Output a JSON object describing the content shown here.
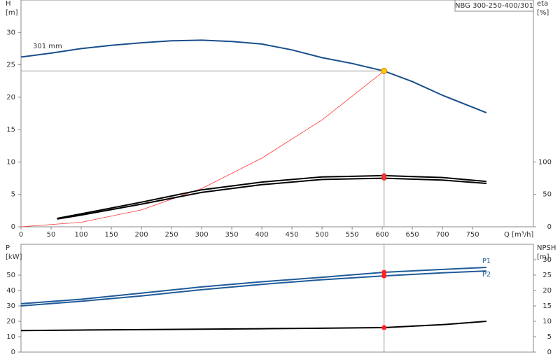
{
  "chart_data": [
    {
      "type": "line",
      "title": "NBG 300-250-400/301",
      "xlabel": "Q [m³/h]",
      "ylabel": [
        "H",
        "[m]"
      ],
      "y2label": [
        "eta",
        "[%]"
      ],
      "annotations": [
        "301 mm"
      ],
      "xlim": [
        0,
        851
      ],
      "xticks": [
        0,
        50,
        100,
        150,
        200,
        250,
        300,
        350,
        400,
        450,
        500,
        550,
        600,
        650,
        700,
        750
      ],
      "ylim": [
        0,
        35
      ],
      "yticks": [
        0,
        5,
        10,
        15,
        20,
        25,
        30
      ],
      "y2lim": [
        0,
        350
      ],
      "y2ticks": [
        0,
        50,
        100
      ],
      "series": [
        {
          "color": "#1a4f8c",
          "x": [
            0,
            50,
            100,
            150,
            200,
            250,
            300,
            350,
            400,
            450,
            500,
            550,
            603,
            650,
            700,
            773
          ],
          "values": [
            26.2,
            26.8,
            27.5,
            28.0,
            28.4,
            28.7,
            28.8,
            28.6,
            28.2,
            27.3,
            26.1,
            25.2,
            24.05,
            22.4,
            20.3,
            17.6
          ]
        },
        {
          "color": "#ff3333",
          "x": [
            0,
            100,
            200,
            300,
            400,
            500,
            603
          ],
          "values": [
            0,
            0.7,
            2.6,
            5.9,
            10.6,
            16.5,
            24.05
          ]
        },
        {
          "color": "#000000",
          "axis": "y2",
          "x": [
            60,
            100,
            200,
            300,
            400,
            500,
            603,
            700,
            773
          ],
          "values": [
            13,
            20,
            38,
            57,
            69,
            77,
            79,
            76,
            70
          ]
        },
        {
          "color": "#000000",
          "axis": "y2",
          "x": [
            60,
            100,
            200,
            300,
            400,
            500,
            603,
            700,
            773
          ],
          "values": [
            12,
            18,
            35,
            53,
            65,
            73,
            75,
            72,
            67
          ]
        },
        {
          "mode": "markers",
          "color": "#ff2020",
          "axis": "y2",
          "x": [
            603,
            603
          ],
          "values": [
            79,
            75
          ]
        },
        {
          "mode": "markers",
          "color": "#ffcc00",
          "crosshair": true,
          "x": [
            603
          ],
          "values": [
            24.05
          ]
        }
      ]
    },
    {
      "type": "line",
      "ylabel": [
        "P",
        "[kW]"
      ],
      "y2label": [
        "NPSH",
        "[m]"
      ],
      "xlim": [
        0,
        851
      ],
      "ylim": [
        0,
        70
      ],
      "yticks": [
        0,
        10,
        20,
        30,
        40,
        50
      ],
      "y2lim": [
        0,
        35
      ],
      "y2ticks": [
        0,
        5,
        10,
        15,
        20,
        25,
        30
      ],
      "series": [
        {
          "name": "P1",
          "color": "#1f5b99",
          "x": [
            0,
            100,
            200,
            300,
            400,
            500,
            603,
            700,
            773
          ],
          "values": [
            31.4,
            34.3,
            38.3,
            42.3,
            45.7,
            48.6,
            51.8,
            53.7,
            55
          ]
        },
        {
          "name": "P2",
          "color": "#1f5b99",
          "x": [
            0,
            100,
            200,
            300,
            400,
            500,
            603,
            700,
            773
          ],
          "values": [
            30,
            33,
            36.5,
            40.5,
            44,
            47,
            49.5,
            51.5,
            52.7
          ]
        },
        {
          "color": "#000000",
          "axis": "y2",
          "x": [
            0,
            100,
            200,
            300,
            400,
            500,
            603,
            700,
            773
          ],
          "values": [
            7,
            7.15,
            7.3,
            7.45,
            7.6,
            7.75,
            7.95,
            8.9,
            10
          ]
        },
        {
          "mode": "markers",
          "color": "#ff2020",
          "x": [
            603,
            603
          ],
          "values": [
            51.8,
            49.5
          ]
        },
        {
          "mode": "markers",
          "color": "#ff2020",
          "axis": "y2",
          "x": [
            603
          ],
          "values": [
            7.95
          ]
        }
      ]
    }
  ]
}
